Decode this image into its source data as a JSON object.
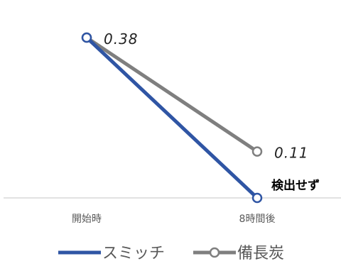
{
  "chart_data": {
    "type": "line",
    "categories": [
      "開始時",
      "8時間後"
    ],
    "series": [
      {
        "name": "スミッチ",
        "values": [
          0.38,
          0
        ],
        "color": "#2F55A4",
        "marker": "open-circle"
      },
      {
        "name": "備長炭",
        "values": [
          0.38,
          0.11
        ],
        "color": "#7F7F7F",
        "marker": "open-circle"
      }
    ],
    "data_labels": [
      {
        "series": "備長炭",
        "category": "開始時",
        "text": "0.38"
      },
      {
        "series": "備長炭",
        "category": "8時間後",
        "text": "0.11"
      },
      {
        "series": "スミッチ",
        "category": "8時間後",
        "text": "検出せず"
      }
    ],
    "ylim": [
      0,
      0.4
    ],
    "grid": false,
    "legend_position": "bottom"
  }
}
